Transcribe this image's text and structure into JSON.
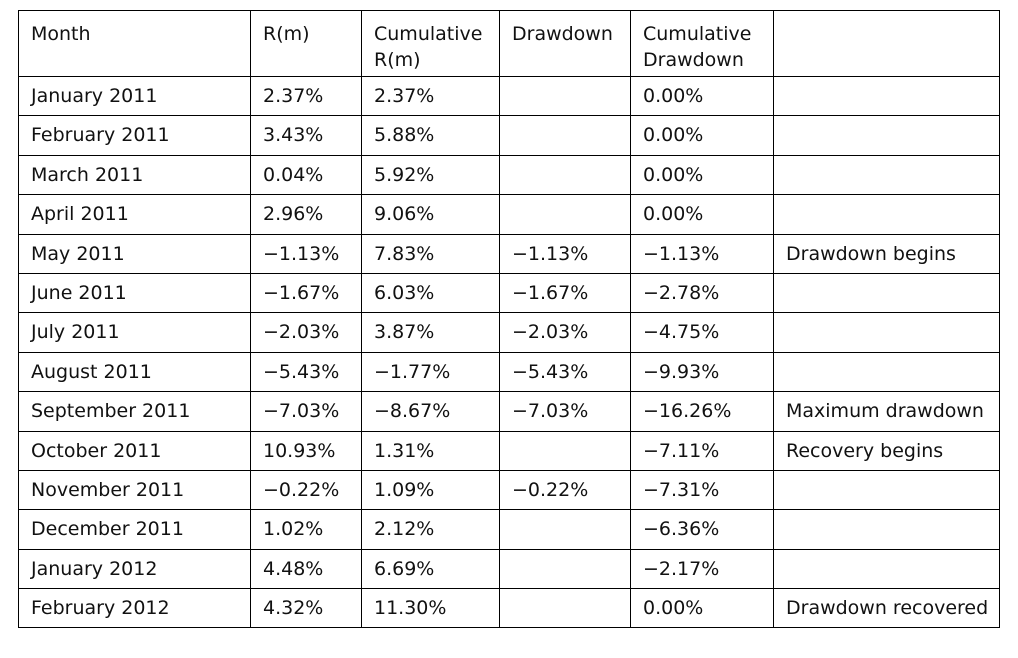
{
  "table": {
    "headers": [
      "Month",
      "R(m)",
      "Cumulative R(m)",
      "Drawdown",
      "Cumulative Drawdown",
      ""
    ],
    "rows": [
      [
        "January 2011",
        "2.37%",
        "2.37%",
        "",
        "0.00%",
        ""
      ],
      [
        "February 2011",
        "3.43%",
        "5.88%",
        "",
        "0.00%",
        ""
      ],
      [
        "March 2011",
        "0.04%",
        "5.92%",
        "",
        "0.00%",
        ""
      ],
      [
        "April 2011",
        "2.96%",
        "9.06%",
        "",
        "0.00%",
        ""
      ],
      [
        "May 2011",
        "−1.13%",
        "7.83%",
        "−1.13%",
        "−1.13%",
        "Drawdown begins"
      ],
      [
        "June 2011",
        "−1.67%",
        "6.03%",
        "−1.67%",
        "−2.78%",
        ""
      ],
      [
        "July 2011",
        "−2.03%",
        "3.87%",
        "−2.03%",
        "−4.75%",
        ""
      ],
      [
        "August 2011",
        "−5.43%",
        "−1.77%",
        "−5.43%",
        "−9.93%",
        ""
      ],
      [
        "September 2011",
        "−7.03%",
        "−8.67%",
        "−7.03%",
        "−16.26%",
        "Maximum drawdown"
      ],
      [
        "October 2011",
        "10.93%",
        "1.31%",
        "",
        "−7.11%",
        "Recovery begins"
      ],
      [
        "November 2011",
        "−0.22%",
        "1.09%",
        "−0.22%",
        "−7.31%",
        ""
      ],
      [
        "December 2011",
        "1.02%",
        "2.12%",
        "",
        "−6.36%",
        ""
      ],
      [
        "January 2012",
        "4.48%",
        "6.69%",
        "",
        "−2.17%",
        ""
      ],
      [
        "February 2012",
        "4.32%",
        "11.30%",
        "",
        "0.00%",
        "Drawdown recovered"
      ]
    ]
  }
}
